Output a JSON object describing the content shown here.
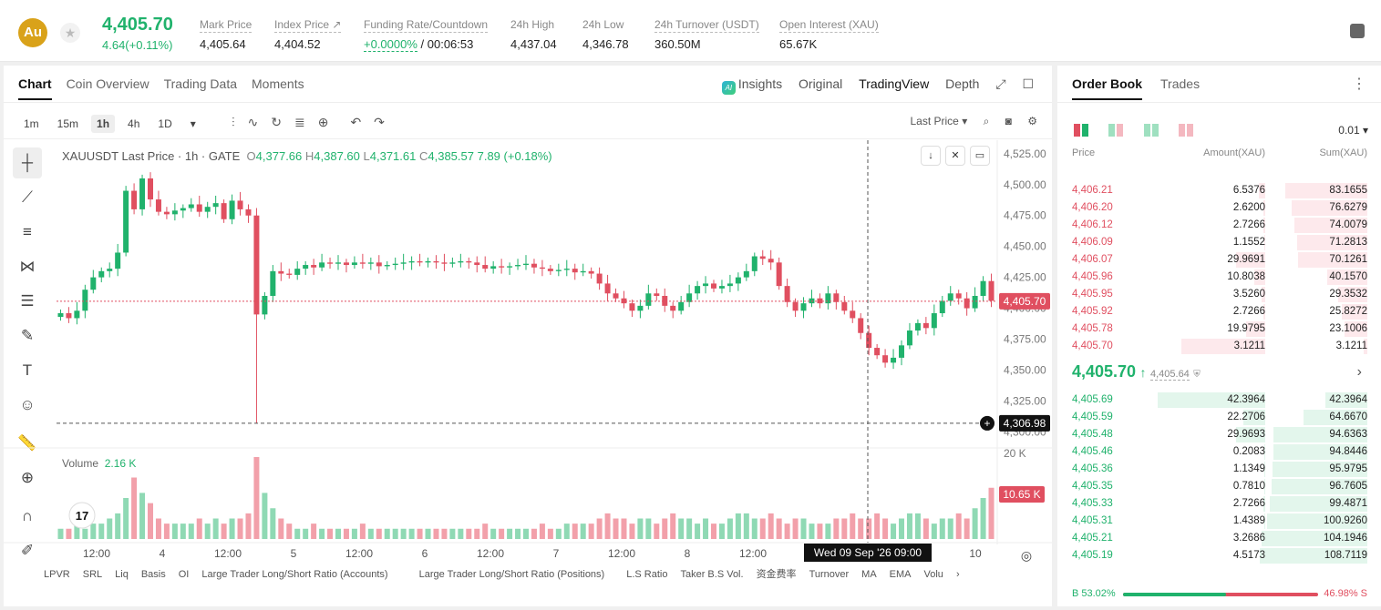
{
  "header": {
    "coin_symbol": "Au",
    "price": "4,405.70",
    "change": "4.64(+0.11%)",
    "stats": [
      {
        "label": "Mark Price",
        "value": "4,405.64"
      },
      {
        "label": "Index Price ↗",
        "value": "4,404.52"
      },
      {
        "label": "Funding Rate/Countdown",
        "value_green": "+0.0000%",
        "value": " / 00:06:53"
      },
      {
        "label": "24h High",
        "value": "4,437.04"
      },
      {
        "label": "24h Low",
        "value": "4,346.78"
      },
      {
        "label": "24h Turnover (USDT)",
        "value": "360.50M"
      },
      {
        "label": "Open Interest (XAU)",
        "value": "65.67K"
      }
    ]
  },
  "chart_panel": {
    "tabs": [
      "Chart",
      "Coin Overview",
      "Trading Data",
      "Moments"
    ],
    "right_tabs": {
      "insights": "Insights",
      "original": "Original",
      "tradingview": "TradingView",
      "depth": "Depth"
    },
    "timeframes": [
      "1m",
      "15m",
      "1h",
      "4h",
      "1D"
    ],
    "price_source": "Last Price",
    "legend": {
      "symbol": "XAUUSDT Last Price · 1h · GATE",
      "o": "4,377.66",
      "h": "4,387.60",
      "l": "4,371.61",
      "c": "4,385.57",
      "chg": "7.89 (+0.18%)"
    },
    "volume_label": "Volume",
    "volume_value": "2.16 K",
    "indicators": [
      "LPVR",
      "SRL",
      "Liq",
      "Basis",
      "OI",
      "Large Trader Long/Short Ratio (Accounts)",
      "Large Trader Long/Short Ratio (Positions)",
      "L.S Ratio",
      "Taker B.S Vol.",
      "资金费率",
      "Turnover",
      "MA",
      "EMA",
      "Volu"
    ]
  },
  "chart_data": {
    "type": "candlestick",
    "y_axis_ticks": [
      "4,525.00",
      "4,500.00",
      "4,475.00",
      "4,450.00",
      "4,425.00",
      "4,400.00",
      "4,375.00",
      "4,350.00",
      "4,325.00",
      "4,300.00"
    ],
    "ylim": [
      4290,
      4530
    ],
    "x_axis_ticks": [
      "12:00",
      "4",
      "12:00",
      "5",
      "12:00",
      "6",
      "12:00",
      "7",
      "12:00",
      "8",
      "12:00",
      "9",
      "10"
    ],
    "last_price_label": "4,405.70",
    "crosshair_price": "4,306.98",
    "crosshair_time": "Wed 09 Sep '26   09:00",
    "volume_axis_label": "20 K",
    "volume_last_label": "10.65 K",
    "closes": [
      4396,
      4392,
      4398,
      4415,
      4425,
      4430,
      4432,
      4445,
      4495,
      4480,
      4505,
      4488,
      4478,
      4476,
      4479,
      4481,
      4484,
      4478,
      4482,
      4485,
      4472,
      4487,
      4480,
      4475,
      4395,
      4410,
      4430,
      4428,
      4427,
      4432,
      4435,
      4433,
      4437,
      4436,
      4437,
      4435,
      4437,
      4436,
      4437,
      4434,
      4435,
      4436,
      4437,
      4438,
      4437,
      4438,
      4437,
      4436,
      4437,
      4438,
      4437,
      4435,
      4432,
      4434,
      4433,
      4434,
      4435,
      4436,
      4433,
      4432,
      4430,
      4431,
      4432,
      4429,
      4430,
      4428,
      4420,
      4412,
      4408,
      4404,
      4398,
      4402,
      4412,
      4410,
      4402,
      4398,
      4405,
      4412,
      4418,
      4420,
      4416,
      4418,
      4420,
      4425,
      4430,
      4442,
      4440,
      4437,
      4418,
      4405,
      4398,
      4404,
      4408,
      4404,
      4412,
      4405,
      4398,
      4392,
      4380,
      4368,
      4362,
      4356,
      4360,
      4370,
      4382,
      4388,
      4384,
      4396,
      4406,
      4412,
      4408,
      4400,
      4410,
      4422,
      4406
    ],
    "volumes": [
      2,
      2,
      3,
      2,
      3,
      3,
      4,
      5,
      8,
      12,
      9,
      7,
      4,
      3,
      3,
      3,
      3,
      4,
      3,
      4,
      3,
      4,
      4,
      5,
      16,
      9,
      6,
      4,
      3,
      2,
      2,
      3,
      2,
      2,
      2,
      2,
      2,
      3,
      2,
      2,
      2,
      2,
      2,
      2,
      2,
      2,
      2,
      2,
      2,
      2,
      2,
      2,
      3,
      2,
      2,
      2,
      2,
      2,
      2,
      3,
      2,
      2,
      3,
      3,
      3,
      3,
      4,
      5,
      4,
      4,
      3,
      4,
      4,
      3,
      4,
      5,
      4,
      4,
      3,
      4,
      3,
      3,
      4,
      5,
      5,
      4,
      4,
      5,
      4,
      3,
      4,
      4,
      3,
      3,
      3,
      4,
      4,
      5,
      4,
      4,
      5,
      4,
      3,
      4,
      5,
      5,
      4,
      3,
      4,
      4,
      5,
      4,
      6,
      8,
      10
    ]
  },
  "order_book": {
    "tabs": [
      "Order Book",
      "Trades"
    ],
    "precision": "0.01",
    "headers": {
      "price": "Price",
      "amount": "Amount(XAU)",
      "sum": "Sum(XAU)"
    },
    "asks": [
      {
        "p": "4,406.21",
        "a": "6.5376",
        "s": "83.1655",
        "af": 0.06,
        "sf": 0.76
      },
      {
        "p": "4,406.20",
        "a": "2.6200",
        "s": "76.6279",
        "af": 0.02,
        "sf": 0.7
      },
      {
        "p": "4,406.12",
        "a": "2.7266",
        "s": "74.0079",
        "af": 0.02,
        "sf": 0.68
      },
      {
        "p": "4,406.09",
        "a": "1.1552",
        "s": "71.2813",
        "af": 0.01,
        "sf": 0.65
      },
      {
        "p": "4,406.07",
        "a": "29.9691",
        "s": "70.1261",
        "af": 0.27,
        "sf": 0.64
      },
      {
        "p": "4,405.96",
        "a": "10.8038",
        "s": "40.1570",
        "af": 0.1,
        "sf": 0.37
      },
      {
        "p": "4,405.95",
        "a": "3.5260",
        "s": "29.3532",
        "af": 0.03,
        "sf": 0.27
      },
      {
        "p": "4,405.92",
        "a": "2.7266",
        "s": "25.8272",
        "af": 0.02,
        "sf": 0.24
      },
      {
        "p": "4,405.78",
        "a": "19.9795",
        "s": "23.1006",
        "af": 0.18,
        "sf": 0.21
      },
      {
        "p": "4,405.70",
        "a": "3.1211",
        "s": "3.1211",
        "af": 0.78,
        "sf": 0.03
      }
    ],
    "mid_price": "4,405.70",
    "mid_mark": "4,405.64",
    "bids": [
      {
        "p": "4,405.69",
        "a": "42.3964",
        "s": "42.3964",
        "af": 1.0,
        "sf": 0.39
      },
      {
        "p": "4,405.59",
        "a": "22.2706",
        "s": "64.6670",
        "af": 0.2,
        "sf": 0.59
      },
      {
        "p": "4,405.48",
        "a": "29.9693",
        "s": "94.6363",
        "af": 0.27,
        "sf": 0.87
      },
      {
        "p": "4,405.46",
        "a": "0.2083",
        "s": "94.8446",
        "af": 0.01,
        "sf": 0.87
      },
      {
        "p": "4,405.36",
        "a": "1.1349",
        "s": "95.9795",
        "af": 0.01,
        "sf": 0.88
      },
      {
        "p": "4,405.35",
        "a": "0.7810",
        "s": "96.7605",
        "af": 0.01,
        "sf": 0.89
      },
      {
        "p": "4,405.33",
        "a": "2.7266",
        "s": "99.4871",
        "af": 0.02,
        "sf": 0.91
      },
      {
        "p": "4,405.31",
        "a": "1.4389",
        "s": "100.9260",
        "af": 0.01,
        "sf": 0.93
      },
      {
        "p": "4,405.21",
        "a": "3.2686",
        "s": "104.1946",
        "af": 0.03,
        "sf": 0.96
      },
      {
        "p": "4,405.19",
        "a": "4.5173",
        "s": "108.7119",
        "af": 0.04,
        "sf": 1.0
      }
    ],
    "buy_label": "B 53.02%",
    "sell_label": "46.98% S",
    "buy_ratio": 0.5302
  },
  "colors": {
    "up": "#20b26c",
    "down": "#e04f60"
  }
}
